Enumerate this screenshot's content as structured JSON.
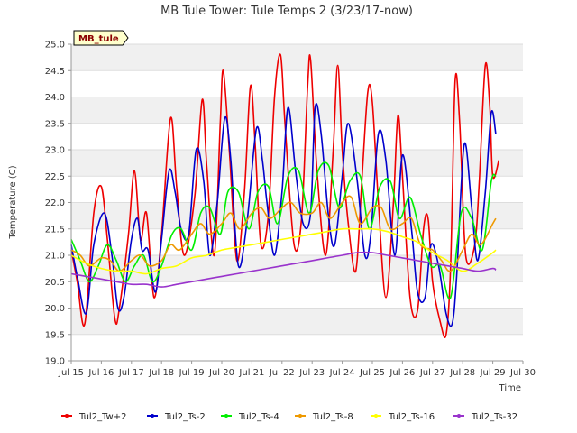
{
  "chart_data": {
    "type": "line",
    "title": "MB Tule Tower: Tule Temps 2 (3/23/17-now)",
    "badge": "MB_tule",
    "xlabel": "Time",
    "ylabel": "Temperature (C)",
    "xlim": [
      15,
      30
    ],
    "ylim": [
      19.0,
      25.0
    ],
    "x_ticks": [
      15,
      16,
      17,
      18,
      19,
      20,
      21,
      22,
      23,
      24,
      25,
      26,
      27,
      28,
      29,
      30
    ],
    "x_tick_labels": [
      "Jul 15",
      "Jul 16",
      "Jul 17",
      "Jul 18",
      "Jul 19",
      "Jul 20",
      "Jul 21",
      "Jul 22",
      "Jul 23",
      "Jul 24",
      "Jul 25",
      "Jul 26",
      "Jul 27",
      "Jul 28",
      "Jul 29",
      "Jul 30"
    ],
    "y_ticks": [
      19.0,
      19.5,
      20.0,
      20.5,
      21.0,
      21.5,
      22.0,
      22.5,
      23.0,
      23.5,
      24.0,
      24.5,
      25.0
    ],
    "y_tick_labels": [
      "19.0",
      "19.5",
      "20.0",
      "20.5",
      "21.0",
      "21.5",
      "22.0",
      "22.5",
      "23.0",
      "23.5",
      "24.0",
      "24.5",
      "25.0"
    ],
    "grid": true,
    "legend_position": "bottom",
    "series": [
      {
        "name": "Tul2_Tw+2",
        "color": "#ee0000",
        "x": [
          15.0,
          15.2,
          15.45,
          15.75,
          16.0,
          16.2,
          16.45,
          16.6,
          16.9,
          17.1,
          17.3,
          17.5,
          17.75,
          18.0,
          18.3,
          18.5,
          18.75,
          19.1,
          19.35,
          19.5,
          19.75,
          19.95,
          20.05,
          20.25,
          20.5,
          20.75,
          20.95,
          21.1,
          21.3,
          21.55,
          21.75,
          21.95,
          22.1,
          22.4,
          22.65,
          22.85,
          22.95,
          23.15,
          23.45,
          23.7,
          23.85,
          24.0,
          24.2,
          24.45,
          24.65,
          24.85,
          25.0,
          25.2,
          25.45,
          25.7,
          25.85,
          26.0,
          26.25,
          26.5,
          26.7,
          26.85,
          27.0,
          27.25,
          27.45,
          27.6,
          27.75,
          27.9,
          28.1,
          28.4,
          28.55,
          28.75,
          28.9,
          29.0,
          29.2
        ],
        "y": [
          21.1,
          20.5,
          19.7,
          21.8,
          22.3,
          21.3,
          19.8,
          20.0,
          21.4,
          22.6,
          21.3,
          21.8,
          20.2,
          21.4,
          23.6,
          22.3,
          21.0,
          22.1,
          23.95,
          22.7,
          21.0,
          23.5,
          24.5,
          23.0,
          20.9,
          22.2,
          24.2,
          23.2,
          21.2,
          21.8,
          24.0,
          24.8,
          23.5,
          21.2,
          21.7,
          24.2,
          24.7,
          22.7,
          21.0,
          23.0,
          24.6,
          23.0,
          21.6,
          20.7,
          22.4,
          24.1,
          23.9,
          22.0,
          20.2,
          22.0,
          23.65,
          22.5,
          20.2,
          19.95,
          21.5,
          21.7,
          20.5,
          19.75,
          19.5,
          20.8,
          24.3,
          23.5,
          21.0,
          21.2,
          22.4,
          24.6,
          23.8,
          22.5,
          22.8
        ]
      },
      {
        "name": "Tul2_Ts-2",
        "color": "#0000cc",
        "x": [
          15.0,
          15.2,
          15.5,
          15.75,
          16.1,
          16.35,
          16.55,
          16.75,
          17.0,
          17.2,
          17.35,
          17.55,
          17.8,
          18.0,
          18.25,
          18.45,
          18.65,
          18.9,
          19.15,
          19.4,
          19.6,
          19.85,
          20.1,
          20.3,
          20.55,
          20.85,
          21.15,
          21.35,
          21.5,
          21.75,
          22.0,
          22.2,
          22.45,
          22.7,
          22.95,
          23.1,
          23.3,
          23.55,
          23.75,
          24.0,
          24.2,
          24.5,
          24.75,
          24.95,
          25.2,
          25.45,
          25.75,
          26.0,
          26.3,
          26.5,
          26.75,
          26.95,
          27.2,
          27.45,
          27.65,
          27.8,
          28.05,
          28.3,
          28.5,
          28.75,
          28.95,
          29.1
        ],
        "y": [
          21.2,
          20.6,
          19.9,
          21.2,
          21.8,
          21.0,
          20.0,
          20.2,
          21.3,
          21.7,
          21.1,
          21.1,
          20.3,
          21.3,
          22.6,
          22.2,
          21.5,
          21.4,
          23.0,
          22.4,
          21.0,
          22.0,
          23.6,
          22.8,
          20.8,
          21.7,
          23.4,
          22.8,
          22.0,
          21.0,
          22.2,
          23.8,
          22.6,
          21.6,
          21.8,
          23.8,
          23.3,
          21.7,
          21.2,
          22.5,
          23.5,
          22.4,
          21.0,
          21.4,
          23.3,
          22.8,
          21.0,
          22.9,
          21.5,
          20.3,
          20.2,
          21.2,
          20.8,
          19.9,
          19.7,
          20.6,
          23.1,
          21.9,
          20.9,
          22.2,
          23.7,
          23.3
        ]
      },
      {
        "name": "Tul2_Ts-4",
        "color": "#00ee00",
        "x": [
          15.0,
          15.3,
          15.6,
          15.9,
          16.2,
          16.5,
          16.8,
          17.1,
          17.4,
          17.7,
          18.0,
          18.35,
          18.65,
          19.0,
          19.3,
          19.6,
          19.95,
          20.2,
          20.55,
          20.9,
          21.2,
          21.55,
          21.85,
          22.2,
          22.55,
          22.9,
          23.2,
          23.55,
          23.9,
          24.25,
          24.6,
          24.9,
          25.25,
          25.6,
          25.9,
          26.25,
          26.6,
          26.95,
          27.25,
          27.6,
          27.95,
          28.3,
          28.65,
          28.95,
          29.1
        ],
        "y": [
          21.3,
          20.9,
          20.5,
          20.8,
          21.2,
          20.9,
          20.5,
          20.8,
          21.0,
          20.5,
          20.8,
          21.4,
          21.5,
          21.1,
          21.8,
          21.9,
          21.4,
          22.2,
          22.2,
          21.5,
          22.2,
          22.3,
          21.6,
          22.5,
          22.6,
          21.8,
          22.6,
          22.7,
          21.9,
          22.4,
          22.5,
          21.5,
          22.3,
          22.4,
          21.7,
          22.1,
          21.4,
          20.8,
          20.8,
          20.2,
          21.8,
          21.7,
          21.1,
          22.4,
          22.5
        ]
      },
      {
        "name": "Tul2_Ts-8",
        "color": "#ee9900",
        "x": [
          15.0,
          15.3,
          15.6,
          16.0,
          16.3,
          16.6,
          17.0,
          17.3,
          17.6,
          18.0,
          18.3,
          18.6,
          19.0,
          19.3,
          19.6,
          20.0,
          20.3,
          20.6,
          21.0,
          21.3,
          21.6,
          22.0,
          22.3,
          22.6,
          23.0,
          23.3,
          23.6,
          24.0,
          24.3,
          24.6,
          25.0,
          25.3,
          25.6,
          26.0,
          26.3,
          26.6,
          27.0,
          27.3,
          27.6,
          28.0,
          28.3,
          28.6,
          29.0,
          29.1
        ],
        "y": [
          21.1,
          21.0,
          20.8,
          20.95,
          20.9,
          20.7,
          20.9,
          21.0,
          20.8,
          20.9,
          21.2,
          21.1,
          21.4,
          21.6,
          21.4,
          21.6,
          21.8,
          21.5,
          21.8,
          21.9,
          21.7,
          21.9,
          22.0,
          21.8,
          21.8,
          22.0,
          21.7,
          22.0,
          22.1,
          21.6,
          21.9,
          21.9,
          21.5,
          21.6,
          21.7,
          21.2,
          21.1,
          20.9,
          20.7,
          21.1,
          21.4,
          21.2,
          21.6,
          21.7
        ]
      },
      {
        "name": "Tul2_Ts-16",
        "color": "#ffff00",
        "x": [
          15.0,
          15.5,
          16.0,
          16.5,
          17.0,
          17.5,
          18.0,
          18.5,
          19.0,
          19.5,
          20.0,
          20.5,
          21.0,
          21.5,
          22.0,
          22.5,
          23.0,
          23.5,
          24.0,
          24.5,
          25.0,
          25.5,
          26.0,
          26.5,
          27.0,
          27.5,
          28.0,
          28.5,
          29.0,
          29.1
        ],
        "y": [
          21.0,
          20.85,
          20.75,
          20.7,
          20.7,
          20.65,
          20.75,
          20.8,
          20.95,
          21.0,
          21.1,
          21.15,
          21.2,
          21.25,
          21.3,
          21.35,
          21.4,
          21.45,
          21.5,
          21.5,
          21.5,
          21.45,
          21.35,
          21.25,
          21.05,
          20.9,
          20.7,
          20.85,
          21.05,
          21.1
        ]
      },
      {
        "name": "Tul2_Ts-32",
        "color": "#9933cc",
        "x": [
          15.0,
          15.5,
          16.0,
          16.5,
          17.0,
          17.5,
          18.0,
          18.5,
          19.0,
          19.5,
          20.0,
          20.5,
          21.0,
          21.5,
          22.0,
          22.5,
          23.0,
          23.5,
          24.0,
          24.5,
          25.0,
          25.5,
          26.0,
          26.5,
          27.0,
          27.5,
          28.0,
          28.5,
          29.0,
          29.1
        ],
        "y": [
          20.65,
          20.6,
          20.55,
          20.5,
          20.45,
          20.45,
          20.4,
          20.45,
          20.5,
          20.55,
          20.6,
          20.65,
          20.7,
          20.75,
          20.8,
          20.85,
          20.9,
          20.95,
          21.0,
          21.05,
          21.05,
          21.0,
          20.95,
          20.9,
          20.85,
          20.8,
          20.75,
          20.7,
          20.75,
          20.72
        ]
      }
    ]
  }
}
